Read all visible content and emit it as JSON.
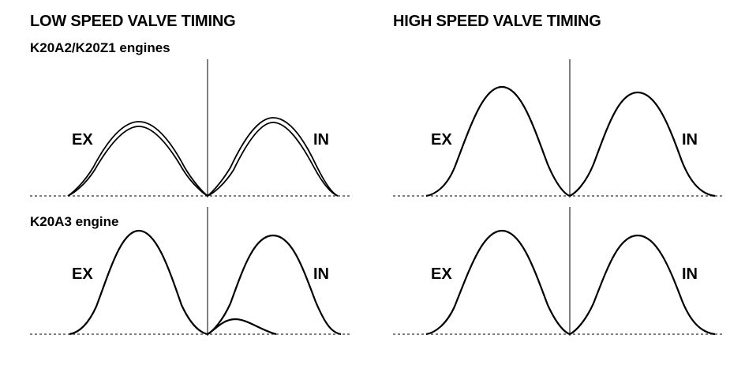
{
  "headers": {
    "low_speed": "LOW SPEED VALVE TIMING",
    "high_speed": "HIGH SPEED VALVE TIMING"
  },
  "subheaders": {
    "k20a2": "K20A2/K20Z1 engines",
    "k20a3": "K20A3 engine"
  },
  "labels": {
    "exhaust": "EX",
    "intake": "IN"
  }
}
